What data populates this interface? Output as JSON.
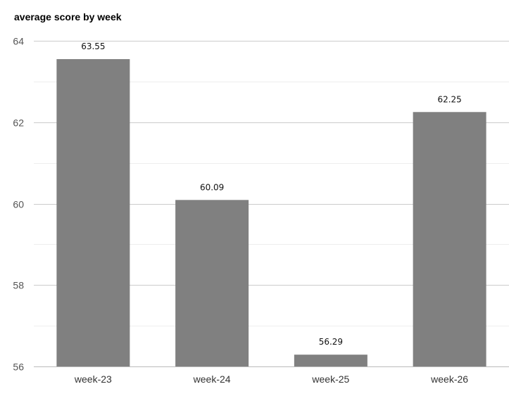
{
  "chart_data": {
    "type": "bar",
    "title": "average score by week",
    "xlabel": "",
    "ylabel": "",
    "categories": [
      "week-23",
      "week-24",
      "week-25",
      "week-26"
    ],
    "values": [
      63.55,
      60.09,
      56.29,
      62.25
    ],
    "data_labels": [
      "63.55",
      "60.09",
      "56.29",
      "62.25"
    ],
    "ylim": [
      56,
      64
    ],
    "yticks": [
      56,
      58,
      60,
      62,
      64
    ],
    "ytick_labels": [
      "56",
      "58",
      "60",
      "62",
      "64"
    ],
    "grid": true,
    "legend": "none",
    "bar_color": "#808080",
    "grid_color": "#cccccc",
    "minor_grid_color": "#eeeeee"
  }
}
